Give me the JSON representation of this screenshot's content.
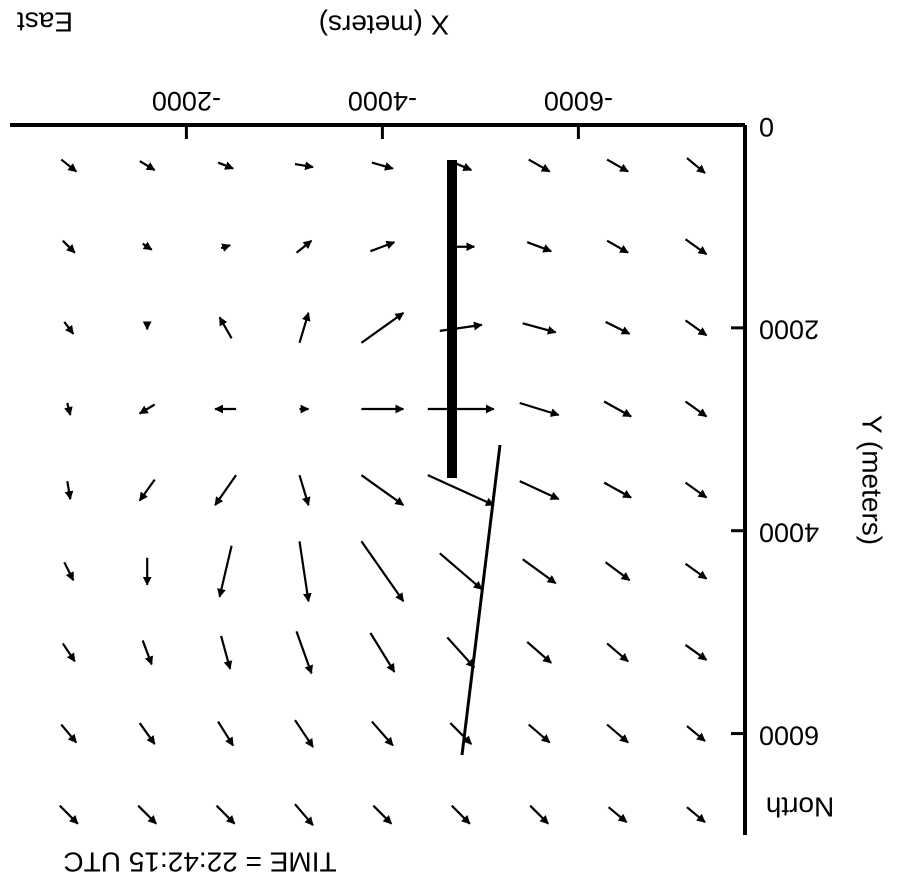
{
  "chart_data": {
    "type": "quiver",
    "title": "TIME = 22:42:15 UTC",
    "x_label": "X (meters)",
    "y_label": "Y (meters)",
    "annotations": [
      "North",
      "East"
    ],
    "color": "#000000",
    "x": [
      -7200,
      -6400,
      -5600,
      -4800,
      -4000,
      -3200,
      -2400,
      -1600,
      -800
    ],
    "y": [
      400,
      1200,
      2000,
      2800,
      3600,
      4400,
      5200,
      6000,
      6800
    ],
    "u": [
      [
        -6,
        -7,
        -7,
        -7,
        -7,
        -6,
        -5,
        -5,
        -5
      ],
      [
        -7,
        -7,
        -8,
        -9,
        -8,
        -5,
        -3,
        -3,
        -4
      ],
      [
        -7,
        -8,
        -11,
        -14,
        -14,
        -3,
        4,
        0,
        -3
      ],
      [
        -7,
        -9,
        -13,
        -22,
        -14,
        -3,
        7,
        5,
        -1
      ],
      [
        -7,
        -9,
        -13,
        -22,
        -14,
        -3,
        7,
        5,
        -1
      ],
      [
        -7,
        -8,
        -11,
        -14,
        -14,
        -3,
        4,
        0,
        -3
      ],
      [
        -7,
        -7,
        -8,
        -9,
        -8,
        -5,
        -3,
        -3,
        -4
      ],
      [
        -6,
        -7,
        -7,
        -7,
        -7,
        -6,
        -5,
        -5,
        -5
      ],
      [
        -6,
        -6,
        -6,
        -6,
        -6,
        -6,
        -6,
        -6,
        -6
      ]
    ],
    "v": [
      [
        5,
        4,
        4,
        3,
        2,
        1,
        2,
        3,
        4
      ],
      [
        5,
        4,
        3,
        0,
        -3,
        -4,
        -1,
        2,
        4
      ],
      [
        5,
        4,
        3,
        -2,
        -10,
        -10,
        -7,
        1,
        4
      ],
      [
        5,
        5,
        4,
        0,
        0,
        0,
        0,
        3,
        4
      ],
      [
        5,
        5,
        6,
        10,
        10,
        10,
        10,
        7,
        6
      ],
      [
        5,
        6,
        8,
        12,
        20,
        20,
        17,
        9,
        6
      ],
      [
        5,
        6,
        7,
        10,
        13,
        14,
        11,
        8,
        6
      ],
      [
        5,
        6,
        6,
        7,
        8,
        9,
        8,
        7,
        6
      ],
      [
        5,
        5,
        6,
        6,
        6,
        7,
        6,
        6,
        6
      ]
    ],
    "xlim": [
      -7700,
      -200
    ],
    "ylim": [
      0,
      7000
    ],
    "xticks": [
      -6000,
      -4000,
      -2000
    ],
    "yticks": [
      0,
      2000,
      4000,
      6000
    ]
  }
}
